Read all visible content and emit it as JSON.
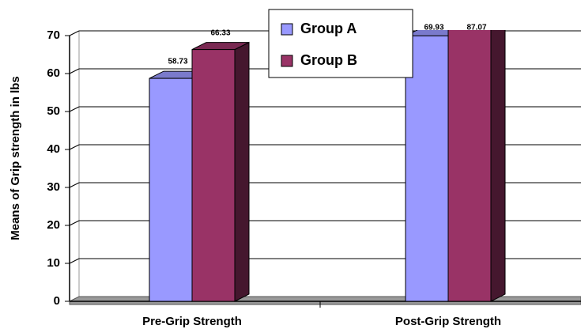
{
  "chart_data": {
    "type": "bar3d",
    "y_label": "Means of Grip strength in lbs",
    "categories": [
      "Pre-Grip Strength",
      "Post-Grip Strength"
    ],
    "series": [
      {
        "name": "Group A",
        "color": "#9999ff",
        "values": [
          58.73,
          69.93
        ]
      },
      {
        "name": "Group B",
        "color": "#993366",
        "values": [
          66.33,
          87.07
        ]
      }
    ],
    "ylim": [
      0,
      70
    ],
    "yticks": [
      0,
      10,
      20,
      30,
      40,
      50,
      60,
      70
    ],
    "grid": true,
    "legend": "top"
  }
}
